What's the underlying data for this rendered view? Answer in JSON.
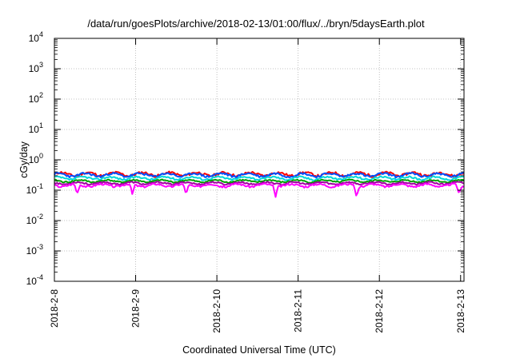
{
  "chart_data": {
    "type": "line",
    "title": "/data/run/goesPlots/archive/2018-02-13/01:00/flux/../bryn/5daysEarth.plot",
    "xlabel": "Coordinated Universal Time (UTC)",
    "ylabel": "cGy/day",
    "yscale": "log",
    "ylim": [
      0.0001,
      10000
    ],
    "xlim": [
      "2018-02-08",
      "2018-02-13 01:00"
    ],
    "grid": true,
    "legend": "none",
    "x_ticks": [
      "2018-2-8",
      "2018-2-9",
      "2018-2-10",
      "2018-2-11",
      "2018-2-12",
      "2018-2-13"
    ],
    "y_ticks": [
      {
        "value": 0.0001,
        "base": "10",
        "exp": "-4"
      },
      {
        "value": 0.001,
        "base": "10",
        "exp": "-3"
      },
      {
        "value": 0.01,
        "base": "10",
        "exp": "-2"
      },
      {
        "value": 0.1,
        "base": "10",
        "exp": "-1"
      },
      {
        "value": 1,
        "base": "10",
        "exp": "0"
      },
      {
        "value": 10,
        "base": "10",
        "exp": "1"
      },
      {
        "value": 100,
        "base": "10",
        "exp": "2"
      },
      {
        "value": 1000,
        "base": "10",
        "exp": "3"
      },
      {
        "value": 10000,
        "base": "10",
        "exp": "4"
      }
    ],
    "series": [
      {
        "color": "#ff0000",
        "base": 0.34,
        "amp": 0.13,
        "phase": 0.0,
        "seed": 11
      },
      {
        "color": "#0050ff",
        "base": 0.32,
        "amp": 0.12,
        "phase": 0.6,
        "seed": 23
      },
      {
        "color": "#00d8d8",
        "base": 0.25,
        "amp": 0.1,
        "phase": 1.2,
        "seed": 37
      },
      {
        "color": "#00a000",
        "base": 0.2,
        "amp": 0.08,
        "phase": 1.9,
        "seed": 41
      },
      {
        "color": "#a000a0",
        "base": 0.17,
        "amp": 0.08,
        "phase": 2.5,
        "seed": 53
      },
      {
        "color": "#ff00ff",
        "base": 0.145,
        "amp": 0.1,
        "phase": 3.1,
        "seed": 67,
        "dips": [
          0.28,
          0.96,
          1.62,
          2.72,
          3.72,
          4.98
        ]
      }
    ]
  }
}
